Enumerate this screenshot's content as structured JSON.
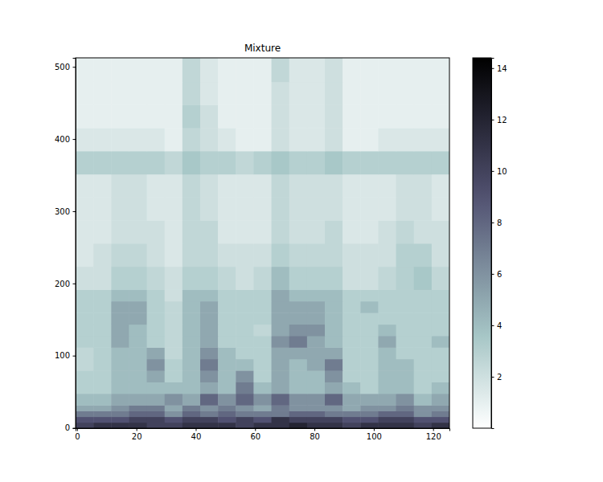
{
  "chart_data": {
    "type": "heatmap",
    "title": "Mixture",
    "xlim": [
      -0.5,
      125.5
    ],
    "ylim": [
      -0.5,
      512.5
    ],
    "xticks": [
      0,
      20,
      40,
      60,
      80,
      100,
      120
    ],
    "yticks": [
      0,
      100,
      200,
      300,
      400,
      500
    ],
    "x_edges": [
      -0.5,
      5.5,
      11.5,
      17.5,
      23.5,
      29.5,
      35.5,
      41.5,
      47.5,
      53.5,
      59.5,
      65.5,
      71.5,
      77.5,
      83.5,
      89.5,
      95.5,
      101.5,
      107.5,
      113.5,
      119.5,
      125.5
    ],
    "y_edges": [
      -0.5,
      7.5,
      15.5,
      23.5,
      31.5,
      47.5,
      63.5,
      79.5,
      95.5,
      111.5,
      127.5,
      143.5,
      159.5,
      175.5,
      191.5,
      223.5,
      255.5,
      287.5,
      319.5,
      351.5,
      383.5,
      415.5,
      447.5,
      479.5,
      512.5
    ],
    "z": [
      [
        10,
        11,
        11,
        11,
        10,
        10,
        11,
        11,
        11,
        10,
        11,
        11,
        12,
        11,
        11,
        10,
        11,
        11,
        11,
        10,
        11
      ],
      [
        9,
        9,
        9,
        10,
        10,
        9,
        10,
        10,
        9,
        10,
        9,
        11,
        10,
        10,
        10,
        9,
        9,
        10,
        10,
        9,
        9
      ],
      [
        7,
        7,
        7,
        8,
        8,
        6,
        8,
        7,
        8,
        7,
        7,
        7,
        8,
        8,
        7,
        7,
        7,
        8,
        8,
        6,
        7
      ],
      [
        5,
        5,
        6,
        7,
        7,
        5,
        7,
        6,
        7,
        6,
        5,
        7,
        6,
        6,
        6,
        5,
        6,
        6,
        7,
        6,
        6
      ],
      [
        4,
        4,
        5,
        5,
        5,
        6,
        5,
        8,
        6,
        8,
        6,
        8,
        6,
        6,
        8,
        5,
        5,
        5,
        6,
        4,
        5
      ],
      [
        3,
        3,
        4,
        4,
        4,
        4,
        4,
        5,
        4,
        7,
        4,
        5,
        4,
        4,
        5,
        4,
        3,
        4,
        4,
        3,
        4
      ],
      [
        3,
        3,
        4,
        4,
        5,
        3,
        4,
        6,
        4,
        6,
        3,
        5,
        4,
        4,
        6,
        3,
        3,
        4,
        4,
        3,
        3
      ],
      [
        2.5,
        3,
        4,
        4,
        6,
        3,
        4,
        7,
        4,
        4,
        3,
        5,
        4,
        5,
        7,
        3,
        3,
        4,
        4,
        3,
        3
      ],
      [
        2.5,
        3,
        4,
        4,
        5,
        2.5,
        4,
        6,
        4,
        3,
        3,
        5,
        5,
        5,
        5,
        3,
        3,
        4,
        3,
        3,
        3
      ],
      [
        3,
        3,
        5,
        4,
        3,
        2.5,
        4,
        5,
        3,
        3,
        3,
        6,
        7,
        5,
        4,
        3,
        3,
        5,
        3,
        3,
        4
      ],
      [
        3,
        3,
        5,
        4,
        3,
        2.5,
        4,
        5,
        3,
        3,
        2.5,
        5,
        6,
        6,
        4,
        3,
        3,
        4,
        3,
        3,
        3
      ],
      [
        3,
        3,
        5,
        5,
        3,
        2.5,
        4,
        5,
        3,
        3,
        3,
        5,
        5,
        5,
        4,
        3,
        3,
        3,
        3,
        3,
        3
      ],
      [
        3,
        3,
        5,
        5,
        3,
        2.5,
        4,
        5,
        3,
        3,
        3,
        5,
        5,
        5,
        4,
        3,
        4,
        3,
        3,
        3,
        3
      ],
      [
        3,
        3,
        4,
        4,
        3,
        2,
        4,
        4,
        3,
        3,
        3,
        5,
        4,
        4,
        4,
        3,
        3,
        3,
        3,
        3,
        3
      ],
      [
        2,
        2,
        3,
        3,
        2.5,
        2,
        3,
        3,
        2.5,
        2,
        2.5,
        4,
        3,
        3,
        3,
        2,
        2,
        2.5,
        3,
        3.5,
        2.5
      ],
      [
        1.5,
        2,
        2.5,
        2.5,
        2,
        1.5,
        2.5,
        2.5,
        2,
        2,
        2,
        3,
        2.5,
        2.5,
        2.5,
        2,
        2,
        2,
        3,
        3,
        2
      ],
      [
        1.5,
        1.5,
        2,
        2,
        2,
        1.5,
        2.5,
        2.5,
        1.5,
        1.5,
        1.5,
        2.5,
        2,
        2,
        2.5,
        1.5,
        1.5,
        2,
        2.5,
        2,
        2
      ],
      [
        1.5,
        1.5,
        2,
        2,
        1.5,
        1.5,
        2.5,
        2,
        1.5,
        1.5,
        1.5,
        2.5,
        2,
        2,
        2,
        1.5,
        1.5,
        1.5,
        2,
        2,
        1.5
      ],
      [
        1.5,
        1.5,
        2,
        2,
        1.5,
        1.5,
        2.5,
        2,
        1.5,
        1.5,
        1.5,
        2.5,
        2,
        2,
        2,
        1.5,
        1.5,
        1.5,
        2,
        2,
        1.5
      ],
      [
        3,
        3,
        3,
        3,
        3,
        2.5,
        3.5,
        3,
        3,
        2.5,
        3,
        3.5,
        3,
        3,
        3.5,
        3,
        3,
        3,
        3,
        3,
        3
      ],
      [
        1.5,
        1.5,
        1.5,
        1.5,
        1.5,
        1,
        2.5,
        2,
        1.5,
        1,
        1,
        2,
        1.5,
        1.5,
        2,
        1,
        1,
        1.5,
        1.5,
        1.5,
        1.5
      ],
      [
        1,
        1,
        1,
        1,
        1,
        1,
        3,
        2,
        1,
        1,
        1,
        2,
        1.5,
        1.5,
        2,
        1,
        1,
        1,
        1,
        1,
        1
      ],
      [
        1,
        1,
        1,
        1,
        1,
        1,
        2.5,
        1.5,
        1,
        1,
        1,
        2,
        1.5,
        1.5,
        2,
        1,
        1,
        1,
        1,
        1,
        1
      ],
      [
        1,
        1,
        1,
        1,
        1,
        1,
        2.5,
        1.5,
        1,
        1,
        1,
        2.5,
        1.5,
        1.5,
        2,
        1,
        1,
        1,
        1,
        1,
        1
      ]
    ],
    "colorbar_lim": [
      0,
      14.4
    ],
    "colorbar_ticks": [
      2,
      4,
      6,
      8,
      10,
      12,
      14
    ]
  }
}
